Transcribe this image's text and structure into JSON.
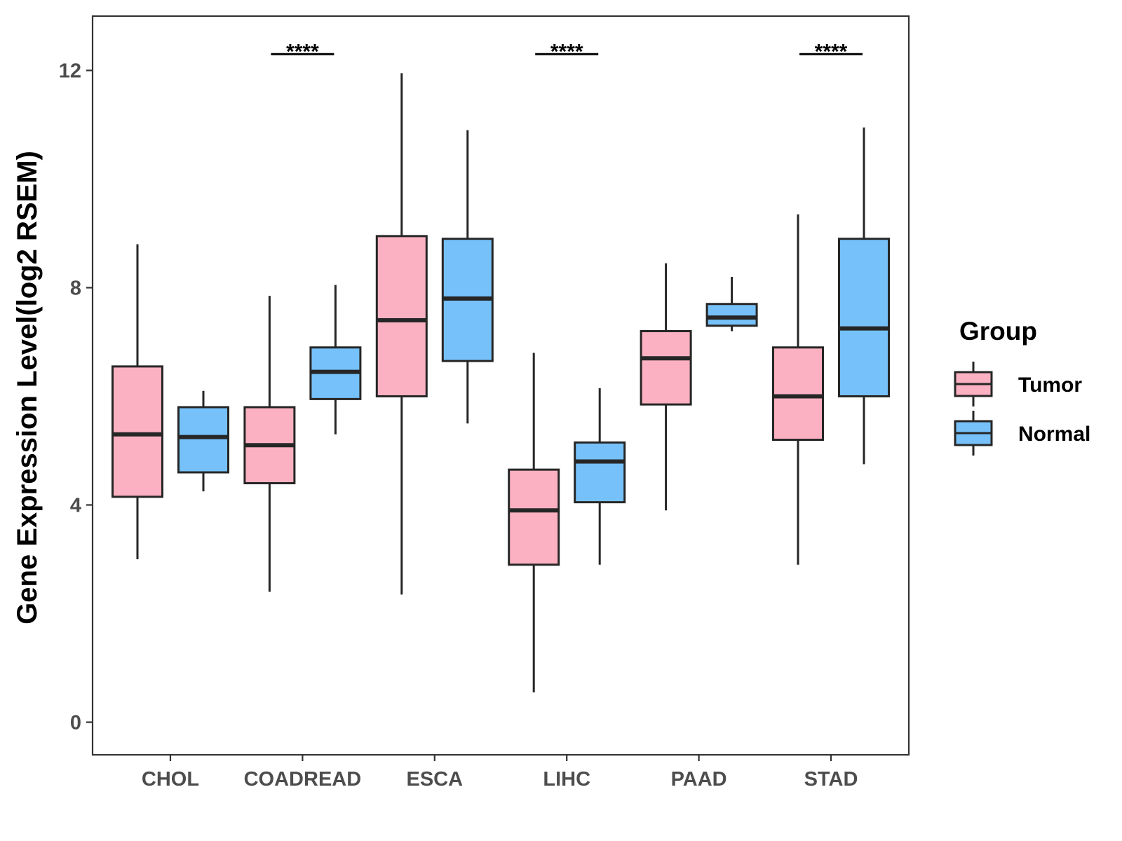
{
  "chart_data": {
    "type": "boxplot",
    "title": "",
    "xlabel": "",
    "ylabel": "Gene Expression Level(log2 RSEM)",
    "ylim": [
      -0.6,
      13.0
    ],
    "yticks": [
      0,
      4,
      8,
      12
    ],
    "yticklabels": [
      "0",
      "4",
      "8",
      "12"
    ],
    "grid": false,
    "categories": [
      "CHOL",
      "COADREAD",
      "ESCA",
      "LIHC",
      "PAAD",
      "STAD"
    ],
    "legend": {
      "title": "Group",
      "position": "right",
      "entries": [
        {
          "name": "Tumor",
          "color": "#FBB1C1"
        },
        {
          "name": "Normal",
          "color": "#76C1F9"
        }
      ]
    },
    "series": [
      {
        "name": "Tumor",
        "color": "#FBB1C1",
        "boxes": [
          {
            "category": "CHOL",
            "min": 3.0,
            "q1": 4.15,
            "median": 5.3,
            "q3": 6.55,
            "max": 8.8
          },
          {
            "category": "COADREAD",
            "min": 2.4,
            "q1": 4.4,
            "median": 5.1,
            "q3": 5.8,
            "max": 7.85
          },
          {
            "category": "ESCA",
            "min": 2.35,
            "q1": 6.0,
            "median": 7.4,
            "q3": 8.95,
            "max": 11.95
          },
          {
            "category": "LIHC",
            "min": 0.55,
            "q1": 2.9,
            "median": 3.9,
            "q3": 4.65,
            "max": 6.8
          },
          {
            "category": "PAAD",
            "min": 3.9,
            "q1": 5.85,
            "median": 6.7,
            "q3": 7.2,
            "max": 8.45
          },
          {
            "category": "STAD",
            "min": 2.9,
            "q1": 5.2,
            "median": 6.0,
            "q3": 6.9,
            "max": 9.35
          }
        ]
      },
      {
        "name": "Normal",
        "color": "#76C1F9",
        "boxes": [
          {
            "category": "CHOL",
            "min": 4.25,
            "q1": 4.6,
            "median": 5.25,
            "q3": 5.8,
            "max": 6.1
          },
          {
            "category": "COADREAD",
            "min": 5.3,
            "q1": 5.95,
            "median": 6.45,
            "q3": 6.9,
            "max": 8.05
          },
          {
            "category": "ESCA",
            "min": 5.5,
            "q1": 6.65,
            "median": 7.8,
            "q3": 8.9,
            "max": 10.9
          },
          {
            "category": "LIHC",
            "min": 2.9,
            "q1": 4.05,
            "median": 4.8,
            "q3": 5.15,
            "max": 6.15
          },
          {
            "category": "PAAD",
            "min": 7.2,
            "q1": 7.3,
            "median": 7.45,
            "q3": 7.7,
            "max": 8.2
          },
          {
            "category": "STAD",
            "min": 4.75,
            "q1": 6.0,
            "median": 7.25,
            "q3": 8.9,
            "max": 10.95
          }
        ]
      }
    ],
    "annotations": [
      {
        "category": "COADREAD",
        "text": "****",
        "y": 12.3
      },
      {
        "category": "LIHC",
        "text": "****",
        "y": 12.3
      },
      {
        "category": "STAD",
        "text": "****",
        "y": 12.3
      }
    ]
  }
}
